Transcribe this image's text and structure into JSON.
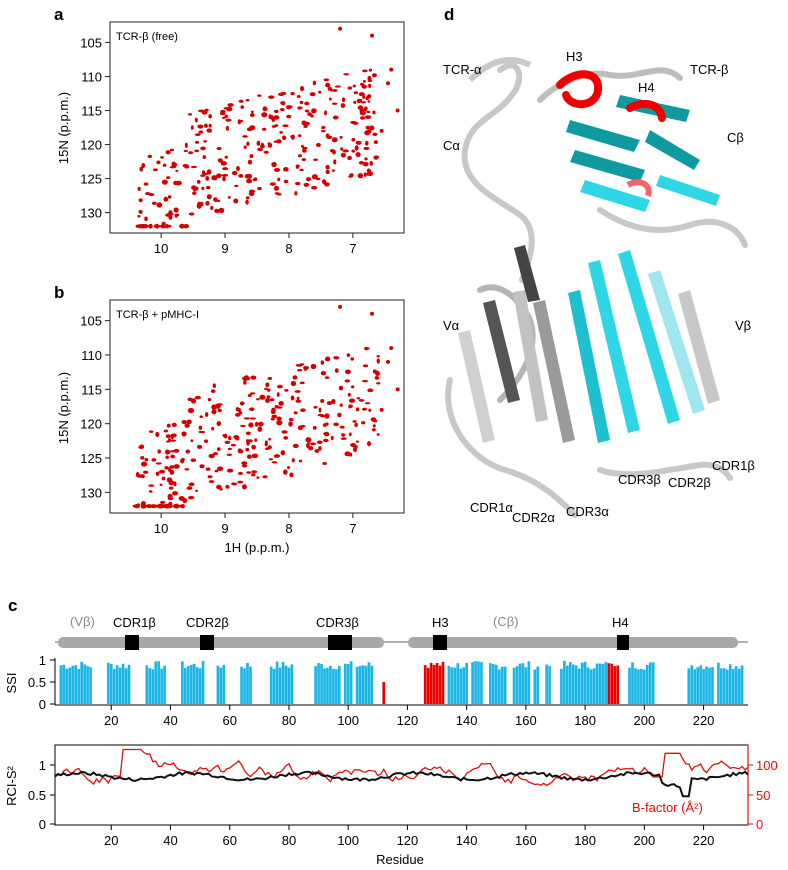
{
  "panels": {
    "a": {
      "letter": "a",
      "inset_label": "TCR-β (free)",
      "ylabel": "15N (p.p.m.)",
      "yticks": [
        "105",
        "110",
        "115",
        "120",
        "125",
        "130"
      ],
      "xticks": [
        "10",
        "9",
        "8",
        "7"
      ]
    },
    "b": {
      "letter": "b",
      "inset_label": "TCR-β + pMHC-I",
      "ylabel": "15N (p.p.m.)",
      "xlabel": "1H (p.p.m.)",
      "yticks": [
        "105",
        "110",
        "115",
        "120",
        "125",
        "130"
      ],
      "xticks": [
        "10",
        "9",
        "8",
        "7"
      ]
    },
    "c": {
      "letter": "c",
      "domain_labels": [
        "(Vβ)",
        "(Cβ)"
      ],
      "region_labels": [
        "CDR1β",
        "CDR2β",
        "CDR3β",
        "H3",
        "H4"
      ],
      "ssi_label": "SSI",
      "ssi_ticks": [
        "1",
        "0.5",
        "0"
      ],
      "rci_label": "RCI-S²",
      "rci_ticks": [
        "1",
        "0.5",
        "0"
      ],
      "bfactor_label": "B-factor (Å²)",
      "bfactor_ticks": [
        "100",
        "50",
        "0"
      ],
      "xlabel": "Residue",
      "xticks": [
        "20",
        "40",
        "60",
        "80",
        "100",
        "120",
        "140",
        "160",
        "180",
        "200",
        "220"
      ]
    },
    "d": {
      "letter": "d",
      "labels": [
        "TCR-α",
        "H3",
        "H4",
        "TCR-β",
        "Cα",
        "Cβ",
        "Vα",
        "Vβ",
        "CDR1β",
        "CDR2β",
        "CDR3β",
        "CDR1α",
        "CDR2α",
        "CDR3α"
      ]
    }
  },
  "colors": {
    "peak": "#d40000",
    "ssi_bar": "#1cb6e6",
    "helix": "#ee0000",
    "rci_line": "#111111",
    "bfactor_line": "#dd1111",
    "domain_bar": "#a8a8a8",
    "teal": "#0e9aa0",
    "cyan": "#2ed6e6",
    "grey_ribbon": "#c8c8c8"
  },
  "chart_data": [
    {
      "type": "scatter",
      "title": "TCR-β (free)",
      "xlabel": "1H (p.p.m.)",
      "ylabel": "15N (p.p.m.)",
      "xlim": [
        10.8,
        6.2
      ],
      "ylim": [
        102,
        133
      ],
      "points_note": "dense cloud of ~250 backbone amide peaks along the diagonal"
    },
    {
      "type": "scatter",
      "title": "TCR-β + pMHC-I",
      "xlabel": "1H (p.p.m.)",
      "ylabel": "15N (p.p.m.)",
      "xlim": [
        10.8,
        6.2
      ],
      "ylim": [
        102,
        133
      ]
    },
    {
      "type": "bar",
      "title": "SSI",
      "ylabel": "SSI",
      "ylim": [
        0,
        1
      ],
      "xlim": [
        1,
        235
      ],
      "helix_regions": [
        [
          112,
          112
        ],
        [
          126,
          132
        ],
        [
          188,
          191
        ]
      ],
      "strand_regions": [
        [
          3,
          13
        ],
        [
          19,
          26
        ],
        [
          32,
          38
        ],
        [
          44,
          51
        ],
        [
          56,
          58
        ],
        [
          64,
          67
        ],
        [
          74,
          81
        ],
        [
          89,
          97
        ],
        [
          99,
          101
        ],
        [
          103,
          108
        ],
        [
          134,
          140
        ],
        [
          142,
          145
        ],
        [
          148,
          153
        ],
        [
          156,
          161
        ],
        [
          163,
          164
        ],
        [
          167,
          168
        ],
        [
          172,
          187
        ],
        [
          195,
          203
        ],
        [
          215,
          223
        ],
        [
          225,
          233
        ]
      ]
    },
    {
      "type": "line",
      "xlabel": "Residue",
      "series": [
        {
          "name": "RCI-S²",
          "axis": "left",
          "ylim": [
            0,
            1.25
          ]
        },
        {
          "name": "B-factor (Å²)",
          "axis": "right",
          "ylim": [
            0,
            125
          ]
        }
      ],
      "xlim": [
        1,
        235
      ]
    }
  ]
}
